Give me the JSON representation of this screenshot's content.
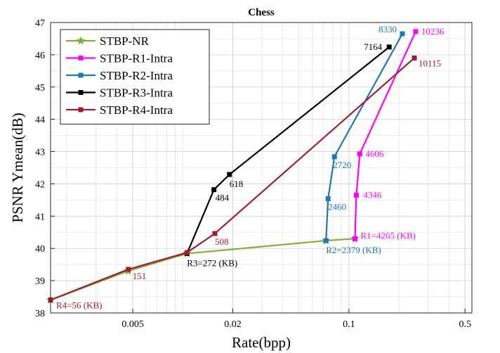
{
  "chart_data": {
    "type": "line",
    "title": "Chess",
    "xlabel": "Rate(bpp)",
    "ylabel": "PSNR Ymean(dB)",
    "xscale": "log",
    "xlim": [
      0.0016,
      0.55
    ],
    "ylim": [
      38,
      47
    ],
    "grid": true,
    "legend_position": "top-left",
    "x_ticks": [
      {
        "value": 0.005,
        "label": "0.005"
      },
      {
        "value": 0.02,
        "label": "0.02"
      },
      {
        "value": 0.1,
        "label": "0.1"
      },
      {
        "value": 0.5,
        "label": "0.5"
      }
    ],
    "y_ticks": [
      38,
      39,
      40,
      41,
      42,
      43,
      44,
      45,
      46,
      47
    ],
    "series": [
      {
        "name": "STBP-NR",
        "color": "#7FB13A",
        "marker": "star",
        "points": [
          [
            0.0016,
            38.4
          ],
          [
            0.0047,
            39.3
          ],
          [
            0.0106,
            39.84
          ],
          [
            0.0728,
            40.24
          ],
          [
            0.1088,
            40.3
          ]
        ]
      },
      {
        "name": "STBP-R1-Intra",
        "color": "#FF00FF",
        "marker": "square",
        "points": [
          [
            0.1088,
            40.3
          ],
          [
            0.1108,
            41.65
          ],
          [
            0.1163,
            42.93
          ],
          [
            0.2523,
            46.72
          ]
        ]
      },
      {
        "name": "STBP-R2-Intra",
        "color": "#1F77B4",
        "marker": "square",
        "points": [
          [
            0.0728,
            40.24
          ],
          [
            0.0749,
            41.54
          ],
          [
            0.0818,
            42.84
          ],
          [
            0.2098,
            46.65
          ]
        ]
      },
      {
        "name": "STBP-R3-Intra",
        "color": "#000000",
        "marker": "square",
        "points": [
          [
            0.0106,
            39.84
          ],
          [
            0.0154,
            41.82
          ],
          [
            0.0191,
            42.29
          ],
          [
            0.1747,
            46.24
          ]
        ]
      },
      {
        "name": "STBP-R4-Intra",
        "color": "#A51C30",
        "marker": "square",
        "points": [
          [
            0.0016,
            38.4
          ],
          [
            0.0047,
            39.35
          ],
          [
            0.0106,
            39.87
          ],
          [
            0.0156,
            40.46
          ],
          [
            0.2477,
            45.9
          ]
        ]
      }
    ],
    "annotations": [
      {
        "text": "R4=56 (KB)",
        "x": 0.0016,
        "y": 38.4,
        "color": "#A51C30",
        "anchor": "start",
        "dx": 8,
        "dy": 12
      },
      {
        "text": "151",
        "x": 0.0047,
        "y": 39.35,
        "color": "#A51C30",
        "anchor": "start",
        "dx": 6,
        "dy": 14
      },
      {
        "text": "R3=272 (KB)",
        "x": 0.0106,
        "y": 39.84,
        "color": "#000000",
        "anchor": "start",
        "dx": 0,
        "dy": 18
      },
      {
        "text": "508",
        "x": 0.0156,
        "y": 40.46,
        "color": "#A51C30",
        "anchor": "start",
        "dx": 0,
        "dy": 16
      },
      {
        "text": "484",
        "x": 0.0154,
        "y": 41.82,
        "color": "#000000",
        "anchor": "start",
        "dx": 2,
        "dy": 16
      },
      {
        "text": "618",
        "x": 0.0191,
        "y": 42.29,
        "color": "#000000",
        "anchor": "start",
        "dx": 0,
        "dy": 18
      },
      {
        "text": "R2=2379 (KB)",
        "x": 0.0728,
        "y": 40.24,
        "color": "#1F77B4",
        "anchor": "start",
        "dx": 0,
        "dy": 18
      },
      {
        "text": "2460",
        "x": 0.0749,
        "y": 41.54,
        "color": "#1F77B4",
        "anchor": "start",
        "dx": 0,
        "dy": 16
      },
      {
        "text": "2720",
        "x": 0.0818,
        "y": 42.84,
        "color": "#1F77B4",
        "anchor": "start",
        "dx": -2,
        "dy": 16
      },
      {
        "text": "8330",
        "x": 0.2098,
        "y": 46.65,
        "color": "#1F77B4",
        "anchor": "end",
        "dx": -8,
        "dy": -2
      },
      {
        "text": "7164",
        "x": 0.1747,
        "y": 46.24,
        "color": "#000000",
        "anchor": "end",
        "dx": -10,
        "dy": 4
      },
      {
        "text": "R1=4265 (KB)",
        "x": 0.1088,
        "y": 40.3,
        "color": "#FF00FF",
        "anchor": "start",
        "dx": 8,
        "dy": 0
      },
      {
        "text": "4346",
        "x": 0.1108,
        "y": 41.65,
        "color": "#FF00FF",
        "anchor": "start",
        "dx": 10,
        "dy": 4
      },
      {
        "text": "4606",
        "x": 0.1163,
        "y": 42.93,
        "color": "#FF00FF",
        "anchor": "start",
        "dx": 8,
        "dy": 4
      },
      {
        "text": "10236",
        "x": 0.2523,
        "y": 46.72,
        "color": "#FF00FF",
        "anchor": "start",
        "dx": 8,
        "dy": 4
      },
      {
        "text": "10115",
        "x": 0.2477,
        "y": 45.9,
        "color": "#A51C30",
        "anchor": "start",
        "dx": 6,
        "dy": 12
      }
    ]
  }
}
